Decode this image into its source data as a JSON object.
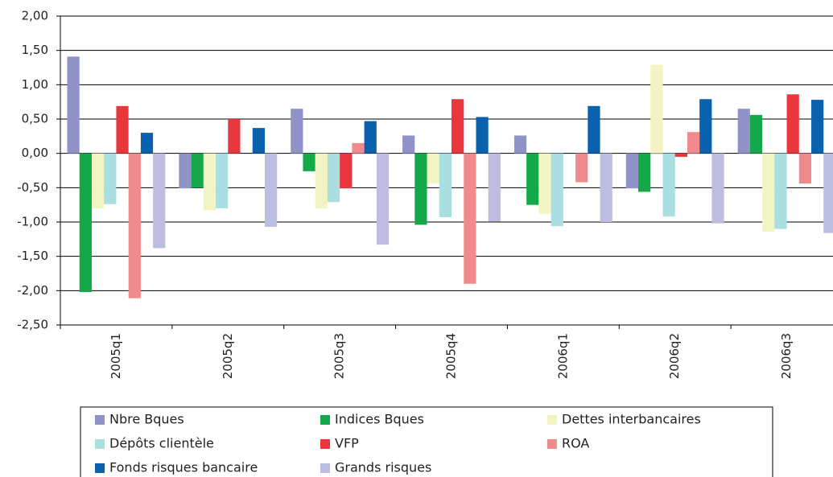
{
  "chart_data": {
    "type": "bar",
    "categories": [
      "2005q1",
      "2005q2",
      "2005q3",
      "2005q4",
      "2006q1",
      "2006q2",
      "2006q3"
    ],
    "series": [
      {
        "name": "Nbre Bques",
        "color": "#8f93c8",
        "values": [
          1.41,
          -0.51,
          0.65,
          0.26,
          0.26,
          -0.51,
          0.65
        ]
      },
      {
        "name": "Indices Bques",
        "color": "#14a84a",
        "values": [
          -2.02,
          -0.5,
          -0.26,
          -1.04,
          -0.75,
          -0.56,
          0.56
        ]
      },
      {
        "name": "Dettes interbancaires",
        "color": "#f2f4c3",
        "values": [
          -0.8,
          -0.83,
          -0.8,
          -0.44,
          -0.88,
          1.29,
          -1.14
        ]
      },
      {
        "name": "Dépôts clientèle",
        "color": "#a9dfe0",
        "values": [
          -0.74,
          -0.8,
          -0.71,
          -0.93,
          -1.06,
          -0.92,
          -1.1
        ]
      },
      {
        "name": "VFP",
        "color": "#e8373d",
        "values": [
          0.69,
          0.5,
          -0.51,
          0.79,
          0,
          -0.05,
          0.86
        ]
      },
      {
        "name": "ROA",
        "color": "#f08a8c",
        "values": [
          -2.11,
          0,
          0.15,
          -1.9,
          -0.42,
          0.31,
          -0.44
        ]
      },
      {
        "name": "Fonds risques bancaire",
        "color": "#0a62ae",
        "values": [
          0.3,
          0.37,
          0.47,
          0.53,
          0.69,
          0.79,
          0.78
        ]
      },
      {
        "name": "Grands risques",
        "color": "#bcbde0",
        "values": [
          -1.38,
          -1.07,
          -1.33,
          -0.99,
          -1.0,
          -1.02,
          -1.16
        ]
      }
    ],
    "ylim": [
      -2.5,
      2
    ],
    "yticks": [
      {
        "value": 2,
        "label": "2,00"
      },
      {
        "value": 1.5,
        "label": "1,50"
      },
      {
        "value": 1,
        "label": "1,00"
      },
      {
        "value": 0.5,
        "label": "0,50"
      },
      {
        "value": 0,
        "label": "0,00"
      },
      {
        "value": -0.5,
        "label": "-0,50"
      },
      {
        "value": -1,
        "label": "-1,00"
      },
      {
        "value": -1.5,
        "label": "-1,50"
      },
      {
        "value": -2,
        "label": "-2,00"
      },
      {
        "value": -2.5,
        "label": "-2,50"
      }
    ],
    "grid": true
  }
}
